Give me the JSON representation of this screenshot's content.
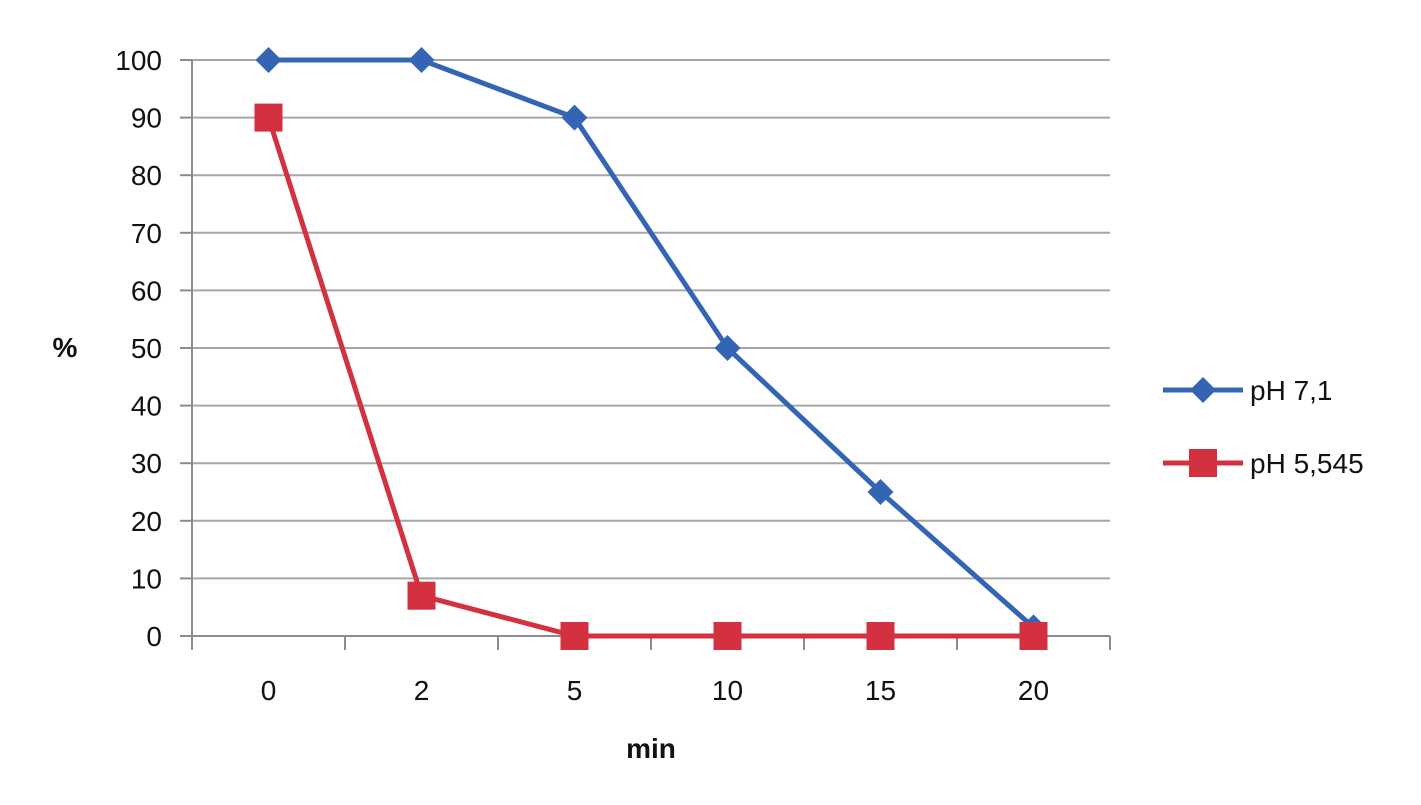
{
  "chart_data": {
    "type": "line",
    "categories": [
      "0",
      "2",
      "5",
      "10",
      "15",
      "20"
    ],
    "series": [
      {
        "name": "pH 7,1",
        "values": [
          100,
          100,
          90,
          50,
          25,
          1.5
        ],
        "color": "#3465b4",
        "marker": "diamond"
      },
      {
        "name": "pH 5,545",
        "values": [
          90,
          7,
          0,
          0,
          0,
          0
        ],
        "color": "#d3313f",
        "marker": "square"
      }
    ],
    "title": "",
    "xlabel": "min",
    "ylabel": "%",
    "ylim": [
      0,
      100
    ],
    "yticks": [
      "0",
      "10",
      "20",
      "30",
      "40",
      "50",
      "60",
      "70",
      "80",
      "90",
      "100"
    ],
    "grid": true,
    "legend": "right"
  }
}
